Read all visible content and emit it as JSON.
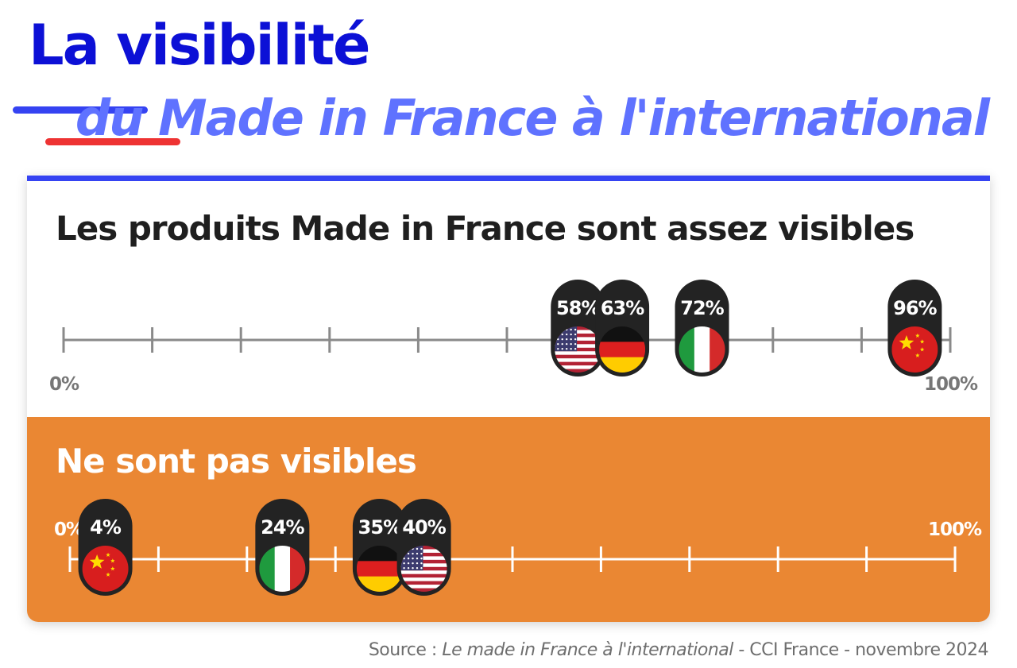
{
  "header": {
    "title": "La visibilité",
    "subtitle": "du Made in France à l'international"
  },
  "colors": {
    "title_blue": "#0c10d6",
    "subtitle_blue": "#5f72ff",
    "accent_blue": "#3543f2",
    "accent_red": "#ee3333",
    "orange": "#ea8733",
    "pill_dark": "#232323",
    "axis_gray": "#8a8a8a"
  },
  "source": {
    "prefix": "Source : ",
    "work": "Le made in France à l'international",
    "suffix": " - CCI France - novembre 2024"
  },
  "chart_data": [
    {
      "type": "scatter",
      "title": "Les produits Made in France sont assez visibles",
      "axis_min_label": "0%",
      "axis_max_label": "100%",
      "xlim": [
        0,
        100
      ],
      "ticks": [
        0,
        10,
        20,
        30,
        40,
        50,
        60,
        70,
        80,
        90,
        100
      ],
      "points": [
        {
          "country": "usa-flag",
          "value": 58,
          "label": "58%"
        },
        {
          "country": "germany-flag",
          "value": 63,
          "label": "63%"
        },
        {
          "country": "italy-flag",
          "value": 72,
          "label": "72%"
        },
        {
          "country": "china-flag",
          "value": 96,
          "label": "96%"
        }
      ]
    },
    {
      "type": "scatter",
      "title": "Ne sont pas visibles",
      "axis_min_label": "0%",
      "axis_max_label": "100%",
      "xlim": [
        0,
        100
      ],
      "ticks": [
        0,
        10,
        20,
        30,
        40,
        50,
        60,
        70,
        80,
        90,
        100
      ],
      "points": [
        {
          "country": "china-flag",
          "value": 4,
          "label": "4%"
        },
        {
          "country": "italy-flag",
          "value": 24,
          "label": "24%"
        },
        {
          "country": "germany-flag",
          "value": 35,
          "label": "35%"
        },
        {
          "country": "usa-flag",
          "value": 40,
          "label": "40%"
        }
      ]
    }
  ]
}
